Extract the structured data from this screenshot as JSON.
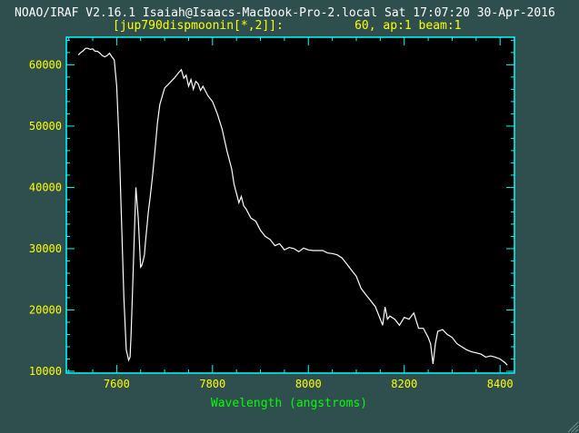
{
  "header": {
    "line1": "NOAO/IRAF V2.16.1 Isaiah@Isaacs-MacBook-Pro-2.local Sat 17:07:20 30-Apr-2016",
    "line2": "[jup790dispmoonin[*,2]]:          60, ap:1 beam:1"
  },
  "colors": {
    "background": "#2f4f4f",
    "plot_bg": "#000000",
    "frame": "#00ffff",
    "text": "#ffff00",
    "xlabel": "#00ff00",
    "data": "#ffffff"
  },
  "chart_data": {
    "type": "line",
    "title": "",
    "xlabel": "Wavelength (angstroms)",
    "ylabel": "",
    "xlim": [
      7495,
      8430
    ],
    "ylim": [
      9700,
      64500
    ],
    "xticks": [
      7600,
      7800,
      8000,
      8200,
      8400
    ],
    "xtick_labels": [
      "7600",
      "7800",
      "8000",
      "8200",
      "8400"
    ],
    "yticks": [
      10000,
      20000,
      30000,
      40000,
      50000,
      60000
    ],
    "ytick_labels": [
      "10000",
      "20000",
      "30000",
      "40000",
      "50000",
      "60000"
    ],
    "grid": false,
    "series": [
      {
        "name": "jup790dispmoonin[*,2]",
        "x": [
          7520,
          7525,
          7530,
          7535,
          7540,
          7545,
          7550,
          7555,
          7560,
          7565,
          7570,
          7575,
          7580,
          7585,
          7590,
          7595,
          7600,
          7605,
          7610,
          7615,
          7620,
          7625,
          7628,
          7630,
          7633,
          7636,
          7640,
          7645,
          7648,
          7650,
          7652,
          7655,
          7658,
          7660,
          7663,
          7666,
          7670,
          7675,
          7680,
          7685,
          7690,
          7700,
          7710,
          7720,
          7730,
          7735,
          7740,
          7745,
          7750,
          7755,
          7760,
          7765,
          7770,
          7775,
          7780,
          7790,
          7800,
          7810,
          7820,
          7830,
          7840,
          7845,
          7850,
          7855,
          7860,
          7865,
          7870,
          7880,
          7890,
          7900,
          7910,
          7920,
          7930,
          7940,
          7950,
          7960,
          7970,
          7980,
          7990,
          8000,
          8010,
          8020,
          8030,
          8040,
          8050,
          8060,
          8070,
          8080,
          8090,
          8100,
          8110,
          8120,
          8130,
          8140,
          8145,
          8150,
          8155,
          8160,
          8165,
          8170,
          8180,
          8190,
          8200,
          8210,
          8220,
          8230,
          8240,
          8250,
          8255,
          8260,
          8265,
          8270,
          8280,
          8290,
          8300,
          8310,
          8320,
          8330,
          8340,
          8350,
          8360,
          8370,
          8380,
          8390,
          8400,
          8410,
          8415
        ],
        "y": [
          61600,
          62000,
          62300,
          62700,
          62700,
          62500,
          62600,
          62200,
          62200,
          61900,
          61500,
          61300,
          61500,
          61900,
          61300,
          60800,
          56500,
          47500,
          35000,
          22000,
          13500,
          11800,
          12300,
          16000,
          23000,
          30000,
          40000,
          35000,
          30000,
          27000,
          27200,
          28000,
          29000,
          31000,
          33500,
          36000,
          38500,
          42000,
          46000,
          50500,
          53500,
          56200,
          57000,
          57800,
          58800,
          59200,
          57800,
          58300,
          56500,
          57600,
          56000,
          57300,
          56900,
          55800,
          56500,
          55000,
          54000,
          52000,
          49500,
          46000,
          43000,
          40500,
          39000,
          37500,
          38500,
          37000,
          36500,
          35000,
          34500,
          33000,
          32000,
          31500,
          30500,
          30800,
          29800,
          30200,
          30000,
          29500,
          30100,
          29800,
          29700,
          29700,
          29700,
          29300,
          29200,
          29000,
          28500,
          27500,
          26500,
          25500,
          23500,
          22500,
          21500,
          20500,
          19500,
          18500,
          17500,
          20500,
          18500,
          19000,
          18500,
          17500,
          18800,
          18500,
          19500,
          17000,
          17000,
          15500,
          14500,
          11200,
          14500,
          16500,
          16800,
          16000,
          15500,
          14500,
          14000,
          13500,
          13200,
          13000,
          12800,
          12300,
          12500,
          12300,
          12000,
          11400,
          11000
        ]
      }
    ]
  }
}
